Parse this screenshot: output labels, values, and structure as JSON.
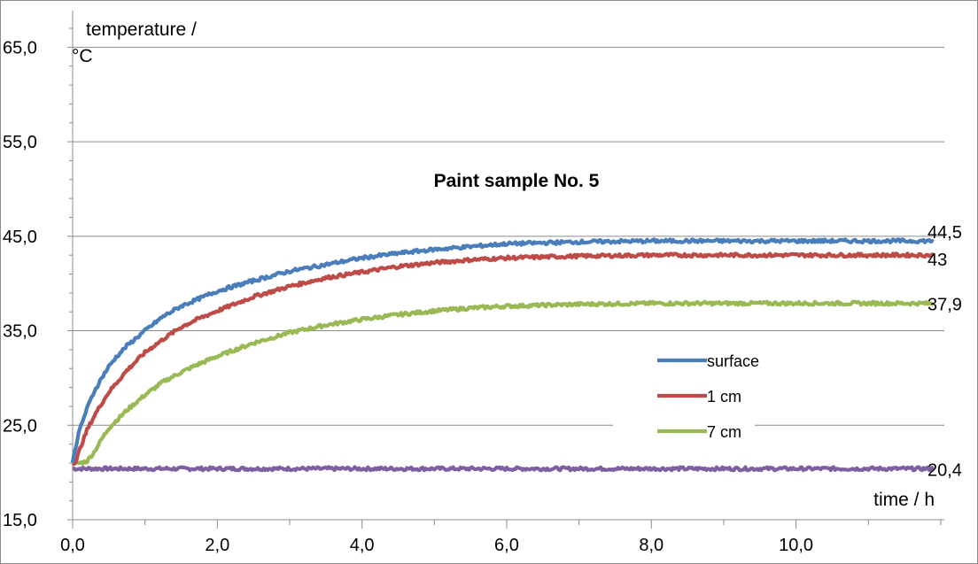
{
  "chart_data": {
    "type": "line",
    "title": "Paint sample No. 5",
    "xlabel": "time / h",
    "ylabel_lines": [
      "temperature /",
      "°C"
    ],
    "xlim": [
      0,
      12.05
    ],
    "ylim": [
      15,
      70
    ],
    "x_ticks": [
      0,
      2,
      4,
      6,
      8,
      10
    ],
    "x_tick_labels": [
      "0,0",
      "2,0",
      "4,0",
      "6,0",
      "8,0",
      "10,0"
    ],
    "y_ticks": [
      15,
      25,
      35,
      45,
      55,
      65
    ],
    "y_tick_labels": [
      "15,0",
      "25,0",
      "35,0",
      "45,0",
      "55,0",
      "65,0"
    ],
    "x_minor_step": 1,
    "y_minor_step": 2,
    "grid": "horizontal-major",
    "legend_position": "right-center",
    "series": [
      {
        "name": "surface",
        "color": "#4a7ebb",
        "end_label": "44,5",
        "points": [
          [
            0,
            21.2
          ],
          [
            0.05,
            23
          ],
          [
            0.1,
            24.6
          ],
          [
            0.2,
            26.8
          ],
          [
            0.3,
            28.6
          ],
          [
            0.4,
            30
          ],
          [
            0.5,
            31.2
          ],
          [
            0.6,
            32.2
          ],
          [
            0.75,
            33.4
          ],
          [
            1.0,
            35
          ],
          [
            1.25,
            36.5
          ],
          [
            1.5,
            37.6
          ],
          [
            1.75,
            38.4
          ],
          [
            2.0,
            39.2
          ],
          [
            2.5,
            40.3
          ],
          [
            3.0,
            41.3
          ],
          [
            3.5,
            42
          ],
          [
            4.0,
            42.7
          ],
          [
            4.5,
            43.2
          ],
          [
            5.0,
            43.6
          ],
          [
            5.5,
            43.9
          ],
          [
            6.0,
            44.2
          ],
          [
            6.5,
            44.3
          ],
          [
            7.0,
            44.4
          ],
          [
            8.0,
            44.5
          ],
          [
            9.0,
            44.5
          ],
          [
            10.0,
            44.5
          ],
          [
            11.0,
            44.5
          ],
          [
            11.9,
            44.5
          ]
        ]
      },
      {
        "name": "1 cm",
        "legend_label": "1 cm",
        "color": "#be4b48",
        "end_label": "43",
        "points": [
          [
            0,
            21
          ],
          [
            0.05,
            21.2
          ],
          [
            0.1,
            22.5
          ],
          [
            0.2,
            24.5
          ],
          [
            0.3,
            26
          ],
          [
            0.4,
            27.3
          ],
          [
            0.5,
            28.5
          ],
          [
            0.75,
            30.8
          ],
          [
            1.0,
            32.7
          ],
          [
            1.25,
            34.1
          ],
          [
            1.5,
            35.4
          ],
          [
            1.75,
            36.3
          ],
          [
            2.0,
            37.1
          ],
          [
            2.5,
            38.6
          ],
          [
            3.0,
            39.7
          ],
          [
            3.5,
            40.6
          ],
          [
            4.0,
            41.2
          ],
          [
            4.5,
            41.8
          ],
          [
            5.0,
            42.2
          ],
          [
            5.5,
            42.5
          ],
          [
            6.0,
            42.7
          ],
          [
            6.5,
            42.8
          ],
          [
            7.0,
            42.9
          ],
          [
            8.0,
            43
          ],
          [
            9.0,
            43
          ],
          [
            10.0,
            43
          ],
          [
            11.0,
            43
          ],
          [
            11.9,
            43
          ]
        ]
      },
      {
        "name": "7 cm",
        "legend_label": "7 cm",
        "color": "#98b954",
        "end_label": "37,9",
        "points": [
          [
            0,
            21
          ],
          [
            0.1,
            21
          ],
          [
            0.2,
            21.2
          ],
          [
            0.3,
            22.2
          ],
          [
            0.4,
            23.5
          ],
          [
            0.5,
            24.7
          ],
          [
            0.75,
            26.6
          ],
          [
            1.0,
            28.2
          ],
          [
            1.25,
            29.6
          ],
          [
            1.5,
            30.6
          ],
          [
            1.75,
            31.5
          ],
          [
            2.0,
            32.3
          ],
          [
            2.5,
            33.7
          ],
          [
            3.0,
            34.8
          ],
          [
            3.5,
            35.6
          ],
          [
            4.0,
            36.2
          ],
          [
            4.5,
            36.7
          ],
          [
            5.0,
            37.1
          ],
          [
            5.5,
            37.4
          ],
          [
            6.0,
            37.6
          ],
          [
            6.5,
            37.7
          ],
          [
            7.0,
            37.8
          ],
          [
            8.0,
            37.9
          ],
          [
            9.0,
            37.9
          ],
          [
            10.0,
            37.9
          ],
          [
            11.0,
            37.9
          ],
          [
            11.9,
            37.9
          ]
        ]
      },
      {
        "color": "#7d60a0",
        "end_label": "20,4",
        "points": [
          [
            0,
            20.4
          ],
          [
            11.9,
            20.4
          ]
        ]
      }
    ]
  }
}
